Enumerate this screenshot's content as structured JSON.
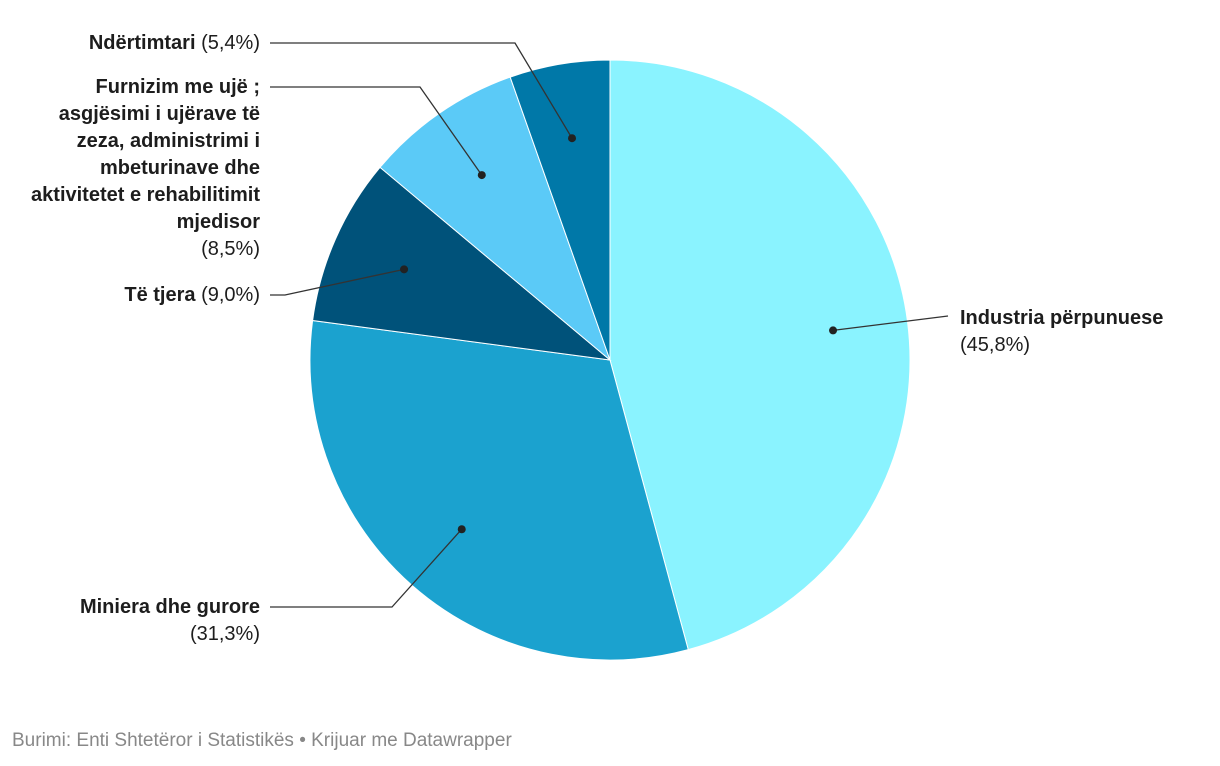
{
  "chart_data": {
    "type": "pie",
    "title": "",
    "slices": [
      {
        "label": "Industria përpunuese",
        "value": 45.8,
        "value_label": "(45,8%)",
        "color": "#8af3ff"
      },
      {
        "label": "Miniera dhe gurore",
        "value": 31.3,
        "value_label": "(31,3%)",
        "color": "#1ba2cf"
      },
      {
        "label": "Të tjera",
        "value": 9.0,
        "value_label": "(9,0%)",
        "color": "#00527a"
      },
      {
        "label": "Furnizim me ujë ; asgjësimi i ujërave të zeza, administrimi i mbeturinave dhe aktivitetet e rehabilitimit mjedisor",
        "value": 8.5,
        "value_label": "(8,5%)",
        "color": "#5bcaf7"
      },
      {
        "label": "Ndërtimtari",
        "value": 5.4,
        "value_label": "(5,4%)",
        "color": "#0078a8"
      }
    ]
  },
  "footer": "Burimi: Enti Shtetëror i Statistikës • Krijuar me Datawrapper"
}
